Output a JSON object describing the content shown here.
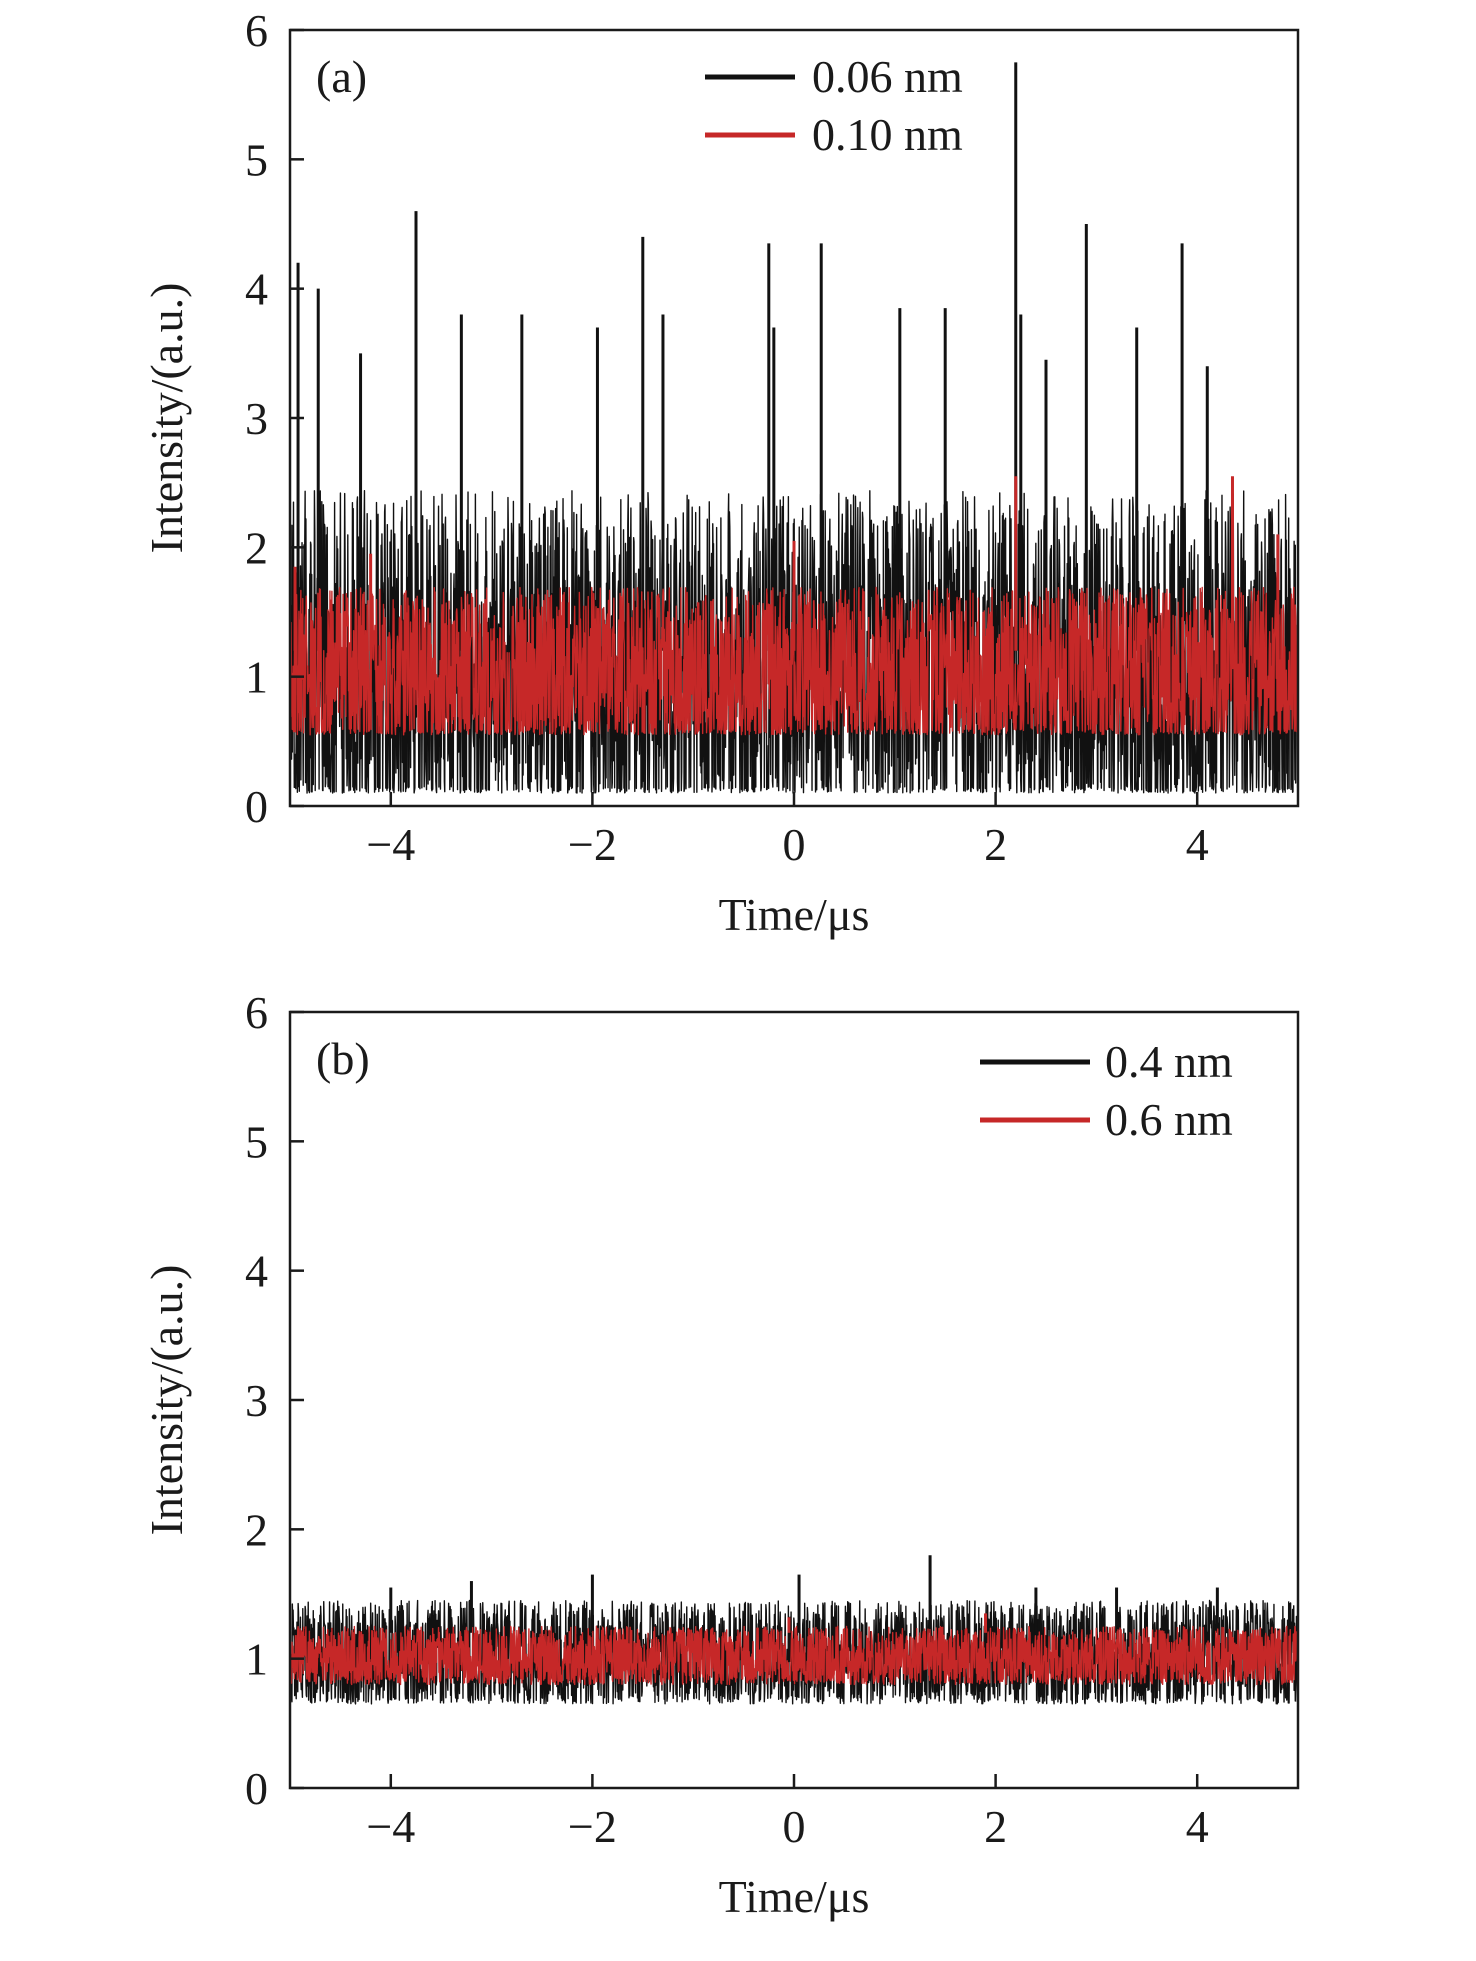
{
  "chart_data": [
    {
      "type": "line",
      "panel_label": "(a)",
      "xlabel": "Time/μs",
      "ylabel": "Intensity/(a.u.)",
      "xlim": [
        -5,
        5
      ],
      "ylim": [
        0,
        6
      ],
      "x_ticks": [
        -4,
        -2,
        0,
        2,
        4
      ],
      "x_tick_labels": [
        "−4",
        "−2",
        "0",
        "2",
        "4"
      ],
      "y_ticks": [
        0,
        1,
        2,
        3,
        4,
        5,
        6
      ],
      "y_tick_labels": [
        "0",
        "1",
        "2",
        "3",
        "4",
        "5",
        "6"
      ],
      "grid": false,
      "legend_position": "top-center",
      "series": [
        {
          "name": "0.06 nm",
          "color": "#111111",
          "mean": 1.0,
          "baseline_range": [
            0.1,
            2.6
          ],
          "peaks": [
            {
              "x": -4.92,
              "y": 4.2
            },
            {
              "x": -4.72,
              "y": 4.0
            },
            {
              "x": -4.3,
              "y": 3.5
            },
            {
              "x": -3.75,
              "y": 4.6
            },
            {
              "x": -3.3,
              "y": 3.8
            },
            {
              "x": -2.7,
              "y": 3.8
            },
            {
              "x": -1.95,
              "y": 3.7
            },
            {
              "x": -1.5,
              "y": 4.4
            },
            {
              "x": -1.3,
              "y": 3.8
            },
            {
              "x": -0.25,
              "y": 4.35
            },
            {
              "x": -0.2,
              "y": 3.7
            },
            {
              "x": 0.27,
              "y": 4.35
            },
            {
              "x": 1.05,
              "y": 3.85
            },
            {
              "x": 1.5,
              "y": 3.85
            },
            {
              "x": 2.2,
              "y": 5.75
            },
            {
              "x": 2.25,
              "y": 3.8
            },
            {
              "x": 2.5,
              "y": 3.45
            },
            {
              "x": 2.9,
              "y": 4.5
            },
            {
              "x": 3.4,
              "y": 3.7
            },
            {
              "x": 3.85,
              "y": 4.35
            },
            {
              "x": 4.1,
              "y": 3.4
            }
          ]
        },
        {
          "name": "0.10 nm",
          "color": "#c62828",
          "mean": 1.0,
          "baseline_range": [
            0.55,
            1.75
          ],
          "peaks": [
            {
              "x": -4.95,
              "y": 1.85
            },
            {
              "x": -4.2,
              "y": 1.95
            },
            {
              "x": 0.0,
              "y": 2.05
            },
            {
              "x": 2.2,
              "y": 2.55
            },
            {
              "x": 4.35,
              "y": 2.55
            },
            {
              "x": 4.8,
              "y": 2.1
            }
          ]
        }
      ]
    },
    {
      "type": "line",
      "panel_label": "(b)",
      "xlabel": "Time/μs",
      "ylabel": "Intensity/(a.u.)",
      "xlim": [
        -5,
        5
      ],
      "ylim": [
        0,
        6
      ],
      "x_ticks": [
        -4,
        -2,
        0,
        2,
        4
      ],
      "x_tick_labels": [
        "−4",
        "−2",
        "0",
        "2",
        "4"
      ],
      "y_ticks": [
        0,
        1,
        2,
        3,
        4,
        5,
        6
      ],
      "y_tick_labels": [
        "0",
        "1",
        "2",
        "3",
        "4",
        "5",
        "6"
      ],
      "grid": false,
      "legend_position": "top-right",
      "series": [
        {
          "name": "0.4 nm",
          "color": "#111111",
          "mean": 1.0,
          "baseline_range": [
            0.65,
            1.45
          ],
          "peaks": [
            {
              "x": -4.0,
              "y": 1.55
            },
            {
              "x": -3.2,
              "y": 1.6
            },
            {
              "x": -2.0,
              "y": 1.65
            },
            {
              "x": 0.05,
              "y": 1.65
            },
            {
              "x": 1.35,
              "y": 1.8
            },
            {
              "x": 2.4,
              "y": 1.55
            },
            {
              "x": 3.2,
              "y": 1.55
            },
            {
              "x": 4.2,
              "y": 1.55
            }
          ]
        },
        {
          "name": "0.6 nm",
          "color": "#c62828",
          "mean": 1.0,
          "baseline_range": [
            0.8,
            1.25
          ],
          "peaks": [
            {
              "x": -0.05,
              "y": 1.32
            },
            {
              "x": 1.9,
              "y": 1.35
            }
          ]
        }
      ]
    }
  ]
}
